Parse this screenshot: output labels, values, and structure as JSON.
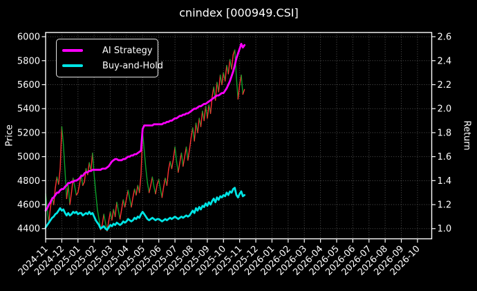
{
  "title": "cnindex [000949.CSI]",
  "colors": {
    "background": "#000000",
    "text": "#ffffff",
    "grid": "#9a9a9a",
    "spine": "#ffffff",
    "ai_strategy": "#ff00ff",
    "buy_and_hold": "#00e5e5",
    "price_up": "#ff3333",
    "price_down": "#0ca32a"
  },
  "axes": {
    "left_label": "Price",
    "right_label": "Return"
  },
  "legend": {
    "items": [
      {
        "label": "AI Strategy",
        "color_key": "ai_strategy"
      },
      {
        "label": "Buy-and-Hold",
        "color_key": "buy_and_hold"
      }
    ]
  },
  "chart_data": {
    "type": "line",
    "title": "cnindex [000949.CSI]",
    "xlabel": "",
    "ylabel_left": "Price",
    "ylabel_right": "Return",
    "grid": "dotted",
    "legend_position": "upper left",
    "x_tick_labels": [
      "2024-11",
      "2024-12",
      "2025-01",
      "2025-02",
      "2025-03",
      "2025-04",
      "2025-05",
      "2025-06",
      "2025-07",
      "2025-08",
      "2025-09",
      "2025-10",
      "2025-11",
      "2025-12",
      "2026-01",
      "2026-02",
      "2026-03",
      "2026-04",
      "2026-05",
      "2026-06",
      "2026-07",
      "2026-08",
      "2026-09",
      "2026-10"
    ],
    "left_ticks": [
      4400,
      4600,
      4800,
      5000,
      5200,
      5400,
      5600,
      5800,
      6000
    ],
    "right_ticks": [
      1.0,
      1.2,
      1.4,
      1.6,
      1.8,
      2.0,
      2.2,
      2.4,
      2.6
    ],
    "xlim_months": [
      0,
      23.88
    ],
    "left_ylim": [
      4315,
      6035
    ],
    "right_ylim": [
      0.915,
      2.635
    ],
    "x_unit": "months since 2024-11-01",
    "x_start": 0,
    "x_step": 0.1,
    "series": [
      {
        "name": "cnindex price",
        "axis": "left",
        "style": "updown-colored",
        "up_color_key": "price_up",
        "down_color_key": "price_down",
        "values": [
          4690,
          4560,
          4450,
          4580,
          4660,
          4600,
          4740,
          4830,
          4770,
          4900,
          5250,
          5100,
          4880,
          4650,
          4760,
          4600,
          4700,
          4820,
          4750,
          4680,
          4700,
          4770,
          4850,
          4760,
          4790,
          4900,
          4850,
          4950,
          4880,
          5030,
          4850,
          4700,
          4560,
          4480,
          4390,
          4430,
          4520,
          4450,
          4380,
          4460,
          4540,
          4470,
          4560,
          4500,
          4620,
          4550,
          4480,
          4560,
          4640,
          4580,
          4650,
          4720,
          4650,
          4580,
          4660,
          4730,
          4680,
          4760,
          4700,
          4850,
          5200,
          5050,
          4900,
          4780,
          4700,
          4760,
          4830,
          4750,
          4690,
          4770,
          4810,
          4730,
          4660,
          4750,
          4820,
          4760,
          4890,
          4960,
          4900,
          4980,
          5080,
          4960,
          4870,
          4950,
          5030,
          4920,
          5000,
          5080,
          4970,
          5060,
          5160,
          5240,
          5130,
          5280,
          5200,
          5320,
          5250,
          5380,
          5300,
          5420,
          5320,
          5430,
          5360,
          5500,
          5580,
          5470,
          5620,
          5540,
          5680,
          5600,
          5700,
          5630,
          5760,
          5690,
          5810,
          5730,
          5850,
          5890,
          5660,
          5480,
          5600,
          5680,
          5520,
          5560
        ]
      },
      {
        "name": "AI Strategy",
        "axis": "right",
        "color_key": "ai_strategy",
        "values": [
          1.15,
          1.17,
          1.2,
          1.22,
          1.25,
          1.26,
          1.28,
          1.3,
          1.3,
          1.32,
          1.33,
          1.33,
          1.35,
          1.36,
          1.38,
          1.38,
          1.39,
          1.39,
          1.4,
          1.4,
          1.41,
          1.42,
          1.44,
          1.44,
          1.46,
          1.47,
          1.47,
          1.48,
          1.48,
          1.49,
          1.49,
          1.49,
          1.49,
          1.49,
          1.49,
          1.5,
          1.5,
          1.5,
          1.51,
          1.52,
          1.54,
          1.56,
          1.57,
          1.58,
          1.58,
          1.57,
          1.57,
          1.57,
          1.58,
          1.58,
          1.59,
          1.6,
          1.6,
          1.61,
          1.61,
          1.62,
          1.62,
          1.63,
          1.64,
          1.65,
          1.83,
          1.86,
          1.86,
          1.86,
          1.86,
          1.86,
          1.86,
          1.87,
          1.87,
          1.87,
          1.87,
          1.87,
          1.87,
          1.88,
          1.88,
          1.89,
          1.89,
          1.9,
          1.9,
          1.91,
          1.92,
          1.92,
          1.93,
          1.94,
          1.94,
          1.95,
          1.95,
          1.96,
          1.96,
          1.97,
          1.98,
          1.99,
          2.0,
          2.0,
          2.01,
          2.02,
          2.02,
          2.03,
          2.04,
          2.04,
          2.05,
          2.06,
          2.07,
          2.08,
          2.09,
          2.1,
          2.11,
          2.11,
          2.12,
          2.13,
          2.13,
          2.15,
          2.17,
          2.2,
          2.23,
          2.27,
          2.31,
          2.36,
          2.42,
          2.46,
          2.5,
          2.54,
          2.51,
          2.53
        ]
      },
      {
        "name": "Buy-and-Hold",
        "axis": "right",
        "color_key": "buy_and_hold",
        "values": [
          1.01,
          1.03,
          1.05,
          1.07,
          1.09,
          1.1,
          1.12,
          1.13,
          1.15,
          1.17,
          1.15,
          1.16,
          1.13,
          1.11,
          1.13,
          1.11,
          1.12,
          1.14,
          1.13,
          1.14,
          1.12,
          1.13,
          1.13,
          1.11,
          1.12,
          1.13,
          1.12,
          1.14,
          1.12,
          1.13,
          1.1,
          1.07,
          1.05,
          1.03,
          1.0,
          1.01,
          1.02,
          1.0,
          0.99,
          1.01,
          1.03,
          1.02,
          1.04,
          1.03,
          1.05,
          1.04,
          1.03,
          1.04,
          1.06,
          1.05,
          1.06,
          1.08,
          1.07,
          1.06,
          1.07,
          1.09,
          1.08,
          1.1,
          1.09,
          1.12,
          1.14,
          1.12,
          1.1,
          1.08,
          1.07,
          1.08,
          1.09,
          1.08,
          1.07,
          1.08,
          1.08,
          1.07,
          1.06,
          1.07,
          1.08,
          1.07,
          1.08,
          1.09,
          1.08,
          1.09,
          1.1,
          1.09,
          1.08,
          1.09,
          1.1,
          1.09,
          1.1,
          1.11,
          1.1,
          1.11,
          1.13,
          1.15,
          1.13,
          1.17,
          1.15,
          1.18,
          1.16,
          1.19,
          1.18,
          1.21,
          1.19,
          1.22,
          1.2,
          1.23,
          1.25,
          1.22,
          1.26,
          1.24,
          1.27,
          1.26,
          1.28,
          1.27,
          1.3,
          1.28,
          1.31,
          1.3,
          1.33,
          1.34,
          1.28,
          1.26,
          1.29,
          1.31,
          1.27,
          1.28
        ]
      }
    ]
  }
}
